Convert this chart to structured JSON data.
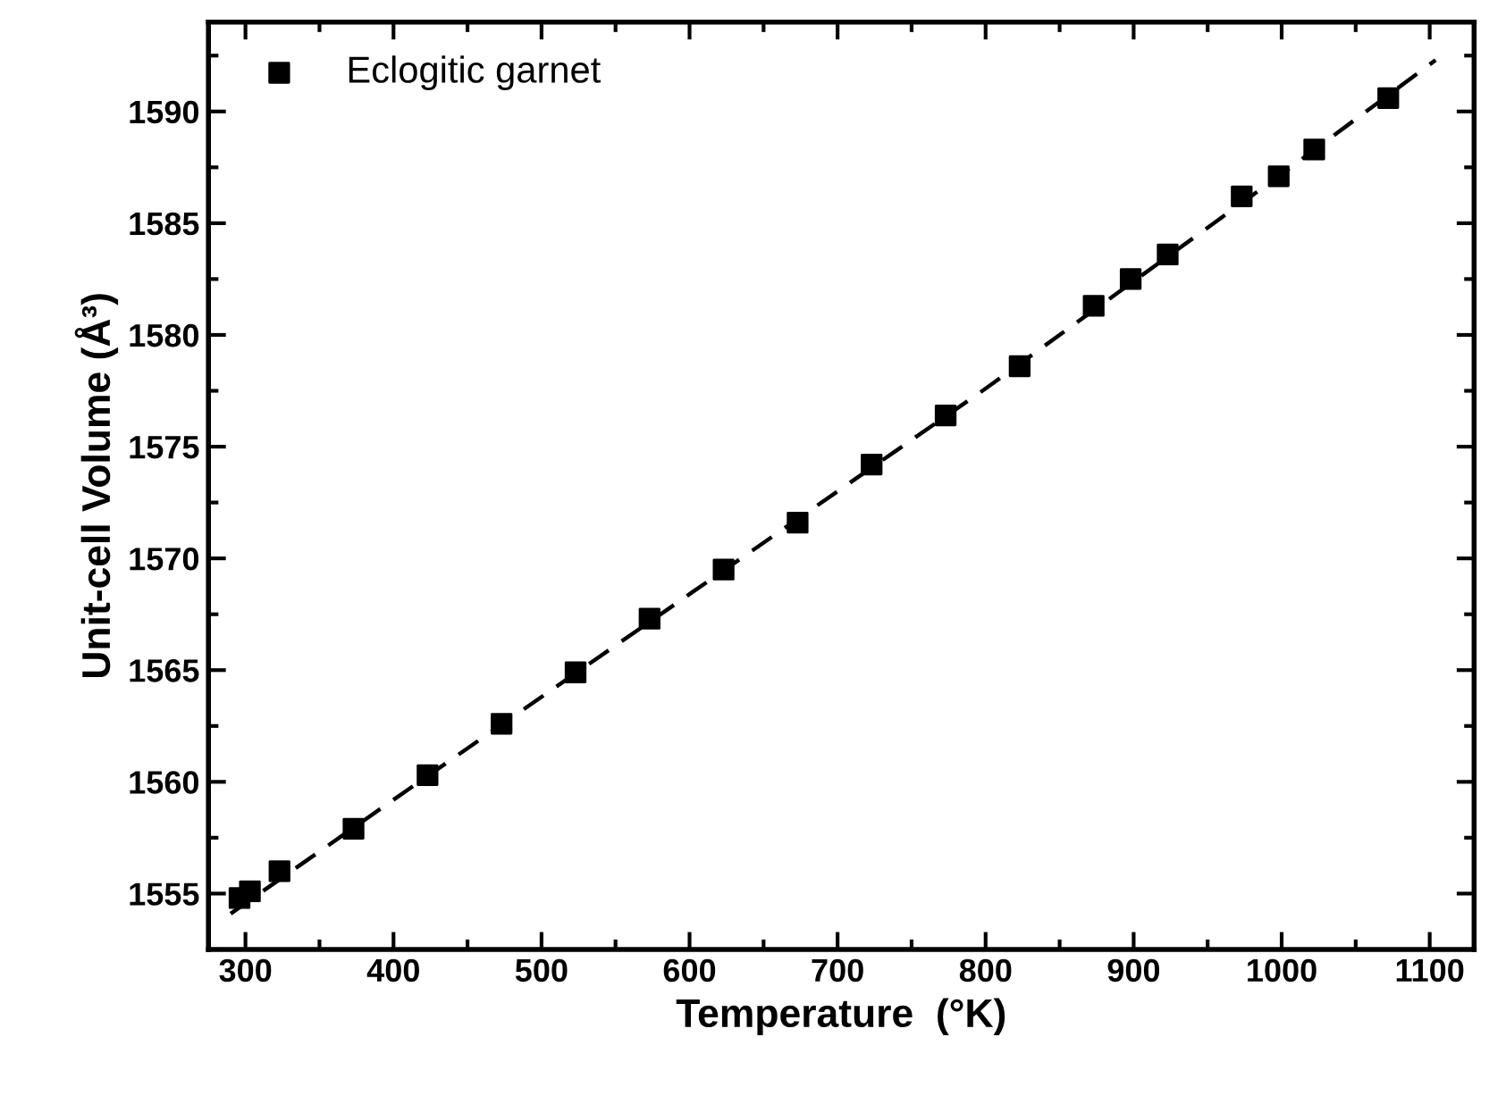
{
  "chart_data": {
    "type": "scatter",
    "xlabel": "Temperature  (°K)",
    "ylabel": "Unit-cell Volume (Å³)",
    "xlim": [
      275,
      1130
    ],
    "ylim": [
      1552.5,
      1594
    ],
    "xticks": [
      300,
      400,
      500,
      600,
      700,
      800,
      900,
      1000,
      1100
    ],
    "yticks": [
      1555,
      1560,
      1565,
      1570,
      1575,
      1580,
      1585,
      1590
    ],
    "legend": "top left",
    "grid": false,
    "series": [
      {
        "name": "Eclogitic garnet",
        "marker": "square",
        "color": "#000000",
        "x": [
          296,
          303,
          323,
          373,
          423,
          473,
          523,
          573,
          623,
          673,
          723,
          773,
          823,
          873,
          898,
          923,
          973,
          998,
          1022,
          1072
        ],
        "values": [
          1554.8,
          1555.1,
          1556.0,
          1557.9,
          1560.3,
          1562.6,
          1564.9,
          1567.3,
          1569.5,
          1571.6,
          1574.2,
          1576.4,
          1578.6,
          1581.3,
          1582.5,
          1583.6,
          1586.2,
          1587.1,
          1588.3,
          1590.6
        ]
      },
      {
        "type": "line",
        "line_style": "dashed",
        "color": "#000000",
        "x": [
          290,
          400,
          600,
          800,
          1000,
          1104
        ],
        "values": [
          1554.1,
          1559.2,
          1568.4,
          1577.6,
          1587.2,
          1592.3
        ]
      }
    ]
  }
}
